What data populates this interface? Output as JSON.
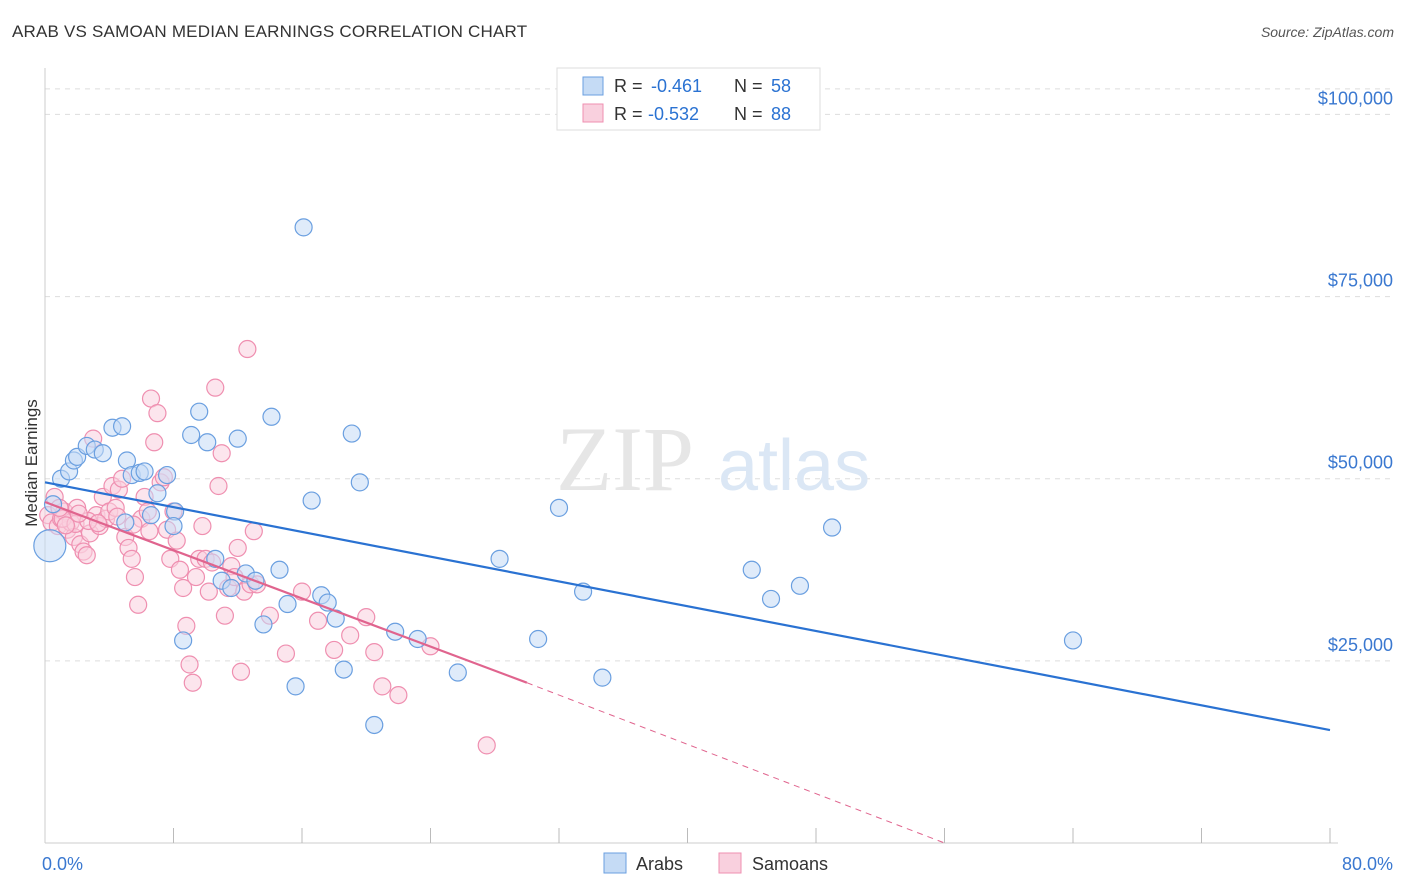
{
  "title": "ARAB VS SAMOAN MEDIAN EARNINGS CORRELATION CHART",
  "source": "Source: ZipAtlas.com",
  "watermark": {
    "zip": "ZIP",
    "atlas": "atlas"
  },
  "colors": {
    "arabs": "#6a9fe0",
    "arabs_fill": "#c5dbf5",
    "arabs_line": "#2a72d2",
    "samoans": "#ef8fb0",
    "samoans_fill": "#f9d0de",
    "samoans_line": "#e0648e",
    "axis_text": "#3a78d0",
    "grid": "#dddddd"
  },
  "legend_box": {
    "rows": [
      {
        "r_label": "R =",
        "r_value": "-0.461",
        "n_label": "N =",
        "n_value": "58"
      },
      {
        "r_label": "R =",
        "r_value": "-0.532",
        "n_label": "N =",
        "n_value": "88"
      }
    ]
  },
  "chart_data": {
    "type": "scatter",
    "title": "ARAB VS SAMOAN MEDIAN EARNINGS CORRELATION CHART",
    "ylabel": "Median Earnings",
    "xlabel": "",
    "xlim": [
      0,
      80
    ],
    "ylim": [
      0,
      105000
    ],
    "x_tick_labels": [
      "0.0%",
      "80.0%"
    ],
    "y_ticks": [
      25000,
      50000,
      75000,
      100000
    ],
    "y_tick_labels": [
      "$25,000",
      "$50,000",
      "$75,000",
      "$100,000"
    ],
    "grid": true,
    "legend_position": "bottom-center",
    "series": [
      {
        "name": "Arabs",
        "r": -0.461,
        "n": 58,
        "trend": {
          "x0": 0,
          "y0": 49500,
          "x1": 80,
          "y1": 15500
        },
        "points": [
          [
            0.3,
            40800
          ],
          [
            0.5,
            46500
          ],
          [
            1.0,
            50000
          ],
          [
            1.5,
            51000
          ],
          [
            1.8,
            52500
          ],
          [
            2.0,
            53000
          ],
          [
            2.6,
            54500
          ],
          [
            3.1,
            54000
          ],
          [
            3.6,
            53500
          ],
          [
            4.2,
            57000
          ],
          [
            4.8,
            57200
          ],
          [
            5.1,
            52500
          ],
          [
            5.4,
            50500
          ],
          [
            5.9,
            50800
          ],
          [
            6.2,
            51000
          ],
          [
            6.6,
            45000
          ],
          [
            7.0,
            48000
          ],
          [
            7.6,
            50500
          ],
          [
            8.1,
            45500
          ],
          [
            8.6,
            27800
          ],
          [
            9.1,
            56000
          ],
          [
            9.6,
            59200
          ],
          [
            10.1,
            55000
          ],
          [
            10.6,
            39000
          ],
          [
            11.0,
            36000
          ],
          [
            11.6,
            35000
          ],
          [
            12.0,
            55500
          ],
          [
            12.5,
            37000
          ],
          [
            13.1,
            36000
          ],
          [
            13.6,
            30000
          ],
          [
            14.1,
            58500
          ],
          [
            14.6,
            37500
          ],
          [
            15.1,
            32800
          ],
          [
            15.6,
            21500
          ],
          [
            16.1,
            84500
          ],
          [
            16.6,
            47000
          ],
          [
            17.2,
            34000
          ],
          [
            17.6,
            33000
          ],
          [
            18.1,
            30800
          ],
          [
            18.6,
            23800
          ],
          [
            19.1,
            56200
          ],
          [
            19.6,
            49500
          ],
          [
            20.5,
            16200
          ],
          [
            21.8,
            29000
          ],
          [
            23.2,
            28000
          ],
          [
            25.7,
            23400
          ],
          [
            28.3,
            39000
          ],
          [
            30.7,
            28000
          ],
          [
            32.0,
            46000
          ],
          [
            33.5,
            34500
          ],
          [
            34.7,
            22700
          ],
          [
            44.0,
            37500
          ],
          [
            45.2,
            33500
          ],
          [
            47.0,
            35300
          ],
          [
            49.0,
            43300
          ],
          [
            64.0,
            27800
          ],
          [
            5.0,
            44000
          ],
          [
            8.0,
            43500
          ]
        ]
      },
      {
        "name": "Samoans",
        "r": -0.532,
        "n": 88,
        "trend": {
          "x0": 0,
          "y0": 46800,
          "x1": 30,
          "y1": 22000,
          "dashed_to_x": 56,
          "dashed_to_y": 0
        },
        "points": [
          [
            0.2,
            45000
          ],
          [
            0.4,
            44000
          ],
          [
            0.6,
            47500
          ],
          [
            0.8,
            43500
          ],
          [
            1.0,
            44500
          ],
          [
            1.2,
            45500
          ],
          [
            1.4,
            43000
          ],
          [
            1.6,
            44000
          ],
          [
            1.8,
            42000
          ],
          [
            2.0,
            46000
          ],
          [
            2.2,
            41000
          ],
          [
            2.4,
            40000
          ],
          [
            2.6,
            39500
          ],
          [
            2.8,
            42500
          ],
          [
            3.0,
            55500
          ],
          [
            3.2,
            45000
          ],
          [
            3.4,
            43500
          ],
          [
            3.6,
            47500
          ],
          [
            3.8,
            44500
          ],
          [
            4.0,
            45500
          ],
          [
            4.2,
            49000
          ],
          [
            4.4,
            46000
          ],
          [
            4.6,
            48500
          ],
          [
            4.8,
            50000
          ],
          [
            5.0,
            42000
          ],
          [
            5.2,
            40500
          ],
          [
            5.4,
            39000
          ],
          [
            5.6,
            36500
          ],
          [
            5.8,
            32700
          ],
          [
            6.0,
            44500
          ],
          [
            6.2,
            47500
          ],
          [
            6.4,
            45500
          ],
          [
            6.6,
            61000
          ],
          [
            6.8,
            55000
          ],
          [
            7.0,
            59000
          ],
          [
            7.2,
            49500
          ],
          [
            7.4,
            50200
          ],
          [
            7.6,
            43000
          ],
          [
            7.8,
            39000
          ],
          [
            8.0,
            45500
          ],
          [
            8.2,
            41500
          ],
          [
            8.4,
            37500
          ],
          [
            8.6,
            35000
          ],
          [
            8.8,
            29800
          ],
          [
            9.0,
            24500
          ],
          [
            9.2,
            22000
          ],
          [
            9.4,
            36500
          ],
          [
            9.6,
            39000
          ],
          [
            9.8,
            43500
          ],
          [
            10.0,
            39000
          ],
          [
            10.2,
            34500
          ],
          [
            10.4,
            38500
          ],
          [
            10.6,
            62500
          ],
          [
            10.8,
            49000
          ],
          [
            11.0,
            53500
          ],
          [
            11.2,
            31200
          ],
          [
            11.4,
            35000
          ],
          [
            11.6,
            38000
          ],
          [
            11.8,
            36500
          ],
          [
            12.0,
            40500
          ],
          [
            12.2,
            23500
          ],
          [
            12.4,
            34500
          ],
          [
            12.6,
            67800
          ],
          [
            12.8,
            35500
          ],
          [
            13.0,
            42800
          ],
          [
            13.2,
            35500
          ],
          [
            14.0,
            31200
          ],
          [
            15.0,
            26000
          ],
          [
            16.0,
            34500
          ],
          [
            17.0,
            30500
          ],
          [
            18.0,
            26500
          ],
          [
            19.0,
            28500
          ],
          [
            20.0,
            31000
          ],
          [
            20.5,
            26200
          ],
          [
            21.0,
            21500
          ],
          [
            22.0,
            20300
          ],
          [
            24.0,
            27000
          ],
          [
            27.5,
            13400
          ],
          [
            1.1,
            44500
          ],
          [
            1.9,
            43800
          ],
          [
            2.7,
            44200
          ],
          [
            3.3,
            43900
          ],
          [
            4.5,
            44800
          ],
          [
            5.5,
            43700
          ],
          [
            0.9,
            46000
          ],
          [
            1.3,
            43600
          ],
          [
            2.1,
            45200
          ],
          [
            6.5,
            42800
          ]
        ]
      }
    ]
  }
}
